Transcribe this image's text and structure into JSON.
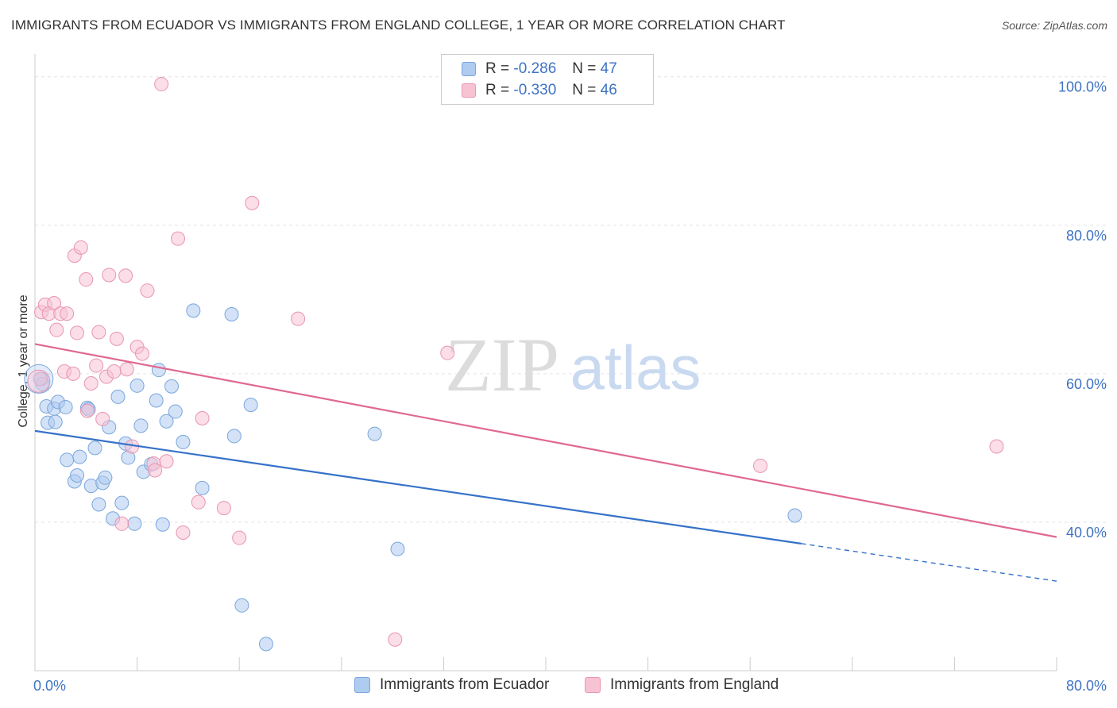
{
  "header": {
    "title": "IMMIGRANTS FROM ECUADOR VS IMMIGRANTS FROM ENGLAND COLLEGE, 1 YEAR OR MORE CORRELATION CHART",
    "source": "Source: ZipAtlas.com"
  },
  "watermark": {
    "zip": "ZIP",
    "atlas": "atlas"
  },
  "legend": {
    "ecuador": {
      "r_label": "R =",
      "r_value": "-0.286",
      "n_label": "N =",
      "n_value": "47"
    },
    "england": {
      "r_label": "R =",
      "r_value": "-0.330",
      "n_label": "N =",
      "n_value": "46"
    }
  },
  "colors": {
    "ecuador_fill": "#aecbf0",
    "ecuador_stroke": "#7aa6dc",
    "ecuador_line": "#3672c9",
    "england_fill": "#f7c3d3",
    "england_stroke": "#e895b2",
    "england_line": "#e06891",
    "tick_label": "#3e73c4",
    "grid": "#e3e3e3"
  },
  "chart_data": {
    "type": "scatter",
    "title": "IMMIGRANTS FROM ECUADOR VS IMMIGRANTS FROM ENGLAND COLLEGE, 1 YEAR OR MORE CORRELATION CHART",
    "xlabel": "",
    "ylabel": "College, 1 year or more",
    "xlim": [
      0,
      80
    ],
    "ylim": [
      20,
      102
    ],
    "x_tick_labels": [
      "0.0%",
      "80.0%"
    ],
    "y_ticks": [
      40,
      60,
      80,
      100
    ],
    "y_tick_labels": [
      "40.0%",
      "60.0%",
      "80.0%",
      "100.0%"
    ],
    "grid": true,
    "legend_position": "top-center",
    "series": [
      {
        "name": "Immigrants from Ecuador",
        "r": -0.286,
        "n": 47,
        "trend": {
          "x0": 0,
          "y0": 52.3,
          "x_solid_end": 60,
          "x_end": 80,
          "slope": -0.253
        },
        "points": [
          [
            0.5,
            59.3
          ],
          [
            0.6,
            58.6
          ],
          [
            0.9,
            55.6
          ],
          [
            1.0,
            53.4
          ],
          [
            1.5,
            55.3
          ],
          [
            1.6,
            53.5
          ],
          [
            1.8,
            56.2
          ],
          [
            2.4,
            55.5
          ],
          [
            2.5,
            48.4
          ],
          [
            3.1,
            45.5
          ],
          [
            3.3,
            46.3
          ],
          [
            3.5,
            48.8
          ],
          [
            4.1,
            55.4
          ],
          [
            4.2,
            55.2
          ],
          [
            4.4,
            44.9
          ],
          [
            4.7,
            50.0
          ],
          [
            5.0,
            42.4
          ],
          [
            5.3,
            45.3
          ],
          [
            5.5,
            46.0
          ],
          [
            5.8,
            52.8
          ],
          [
            6.1,
            40.5
          ],
          [
            6.5,
            56.9
          ],
          [
            6.8,
            42.6
          ],
          [
            7.1,
            50.6
          ],
          [
            7.3,
            48.7
          ],
          [
            7.8,
            39.8
          ],
          [
            8.0,
            58.4
          ],
          [
            8.3,
            53.0
          ],
          [
            8.5,
            46.8
          ],
          [
            9.1,
            47.8
          ],
          [
            9.5,
            56.4
          ],
          [
            9.7,
            60.5
          ],
          [
            10.0,
            39.7
          ],
          [
            10.3,
            53.6
          ],
          [
            10.7,
            58.3
          ],
          [
            11.0,
            54.9
          ],
          [
            11.6,
            50.8
          ],
          [
            12.4,
            68.5
          ],
          [
            13.1,
            44.6
          ],
          [
            15.4,
            68.0
          ],
          [
            15.6,
            51.6
          ],
          [
            16.2,
            28.8
          ],
          [
            16.9,
            55.8
          ],
          [
            18.1,
            23.6
          ],
          [
            26.6,
            51.9
          ],
          [
            28.4,
            36.4
          ],
          [
            59.5,
            40.9
          ]
        ]
      },
      {
        "name": "Immigrants from England",
        "r": -0.33,
        "n": 46,
        "trend": {
          "x0": 0,
          "y0": 64.0,
          "x_solid_end": 80,
          "x_end": 80,
          "slope": -0.325
        },
        "points": [
          [
            0.4,
            59.3
          ],
          [
            0.5,
            68.3
          ],
          [
            0.8,
            69.3
          ],
          [
            1.1,
            68.1
          ],
          [
            1.5,
            69.5
          ],
          [
            1.7,
            65.9
          ],
          [
            2.0,
            68.1
          ],
          [
            2.3,
            60.3
          ],
          [
            2.5,
            68.1
          ],
          [
            3.0,
            60.0
          ],
          [
            3.1,
            75.9
          ],
          [
            3.3,
            65.5
          ],
          [
            3.6,
            77.0
          ],
          [
            4.0,
            72.7
          ],
          [
            4.1,
            55.0
          ],
          [
            4.4,
            58.7
          ],
          [
            4.8,
            61.1
          ],
          [
            5.0,
            65.6
          ],
          [
            5.3,
            53.9
          ],
          [
            5.6,
            59.6
          ],
          [
            5.8,
            73.3
          ],
          [
            6.2,
            60.3
          ],
          [
            6.4,
            64.7
          ],
          [
            6.8,
            39.8
          ],
          [
            7.1,
            73.2
          ],
          [
            7.2,
            60.6
          ],
          [
            7.6,
            50.2
          ],
          [
            8.0,
            63.6
          ],
          [
            8.4,
            62.7
          ],
          [
            8.8,
            71.2
          ],
          [
            9.3,
            47.9
          ],
          [
            9.4,
            47.0
          ],
          [
            9.9,
            99.0
          ],
          [
            10.3,
            48.2
          ],
          [
            11.2,
            78.2
          ],
          [
            11.6,
            38.6
          ],
          [
            12.8,
            42.7
          ],
          [
            13.1,
            54.0
          ],
          [
            14.8,
            41.9
          ],
          [
            16.0,
            37.9
          ],
          [
            17.0,
            83.0
          ],
          [
            20.6,
            67.4
          ],
          [
            28.2,
            24.2
          ],
          [
            32.3,
            62.8
          ],
          [
            56.8,
            47.6
          ],
          [
            75.3,
            50.2
          ]
        ]
      }
    ]
  },
  "bottom_legend": {
    "ecuador_label": "Immigrants from Ecuador",
    "england_label": "Immigrants from England"
  }
}
